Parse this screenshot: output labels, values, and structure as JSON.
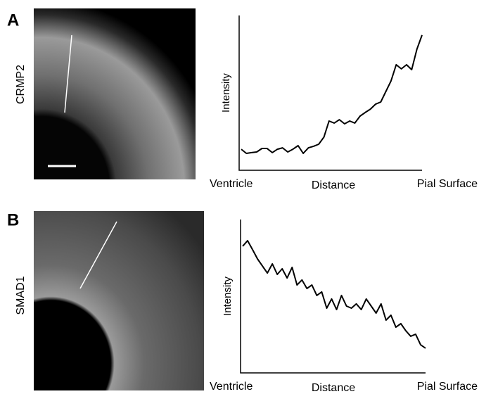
{
  "panel_labels": [
    "A",
    "B"
  ],
  "image_labels": [
    "CRMP2",
    "SMAD1"
  ],
  "chart_data": [
    {
      "type": "line",
      "xlabel": "Distance",
      "xlabel_start": "Ventricle",
      "xlabel_end": "Pial Surface",
      "ylabel": "Intensity",
      "ylim": [
        0,
        100
      ],
      "color": "#000000",
      "values": [
        13.6,
        10.9,
        11.4,
        11.8,
        14.1,
        14.1,
        11.4,
        13.6,
        14.5,
        11.8,
        13.6,
        15.9,
        10.9,
        14.5,
        15.5,
        16.8,
        21.4,
        31.8,
        30.5,
        32.7,
        30,
        31.8,
        30.5,
        35,
        37.3,
        39.5,
        42.7,
        44.1,
        50.9,
        57.7,
        68.2,
        65.5,
        68.2,
        65,
        78.2,
        87.3
      ]
    },
    {
      "type": "line",
      "xlabel": "Distance",
      "xlabel_start": "Ventricle",
      "xlabel_end": "Pial Surface",
      "ylabel": "Intensity",
      "ylim": [
        0,
        100
      ],
      "color": "#000000",
      "values": [
        82.6,
        86.2,
        80.3,
        74.3,
        69.7,
        65.1,
        71.1,
        64.2,
        67.9,
        61.9,
        68.8,
        57.3,
        60.6,
        55,
        57.3,
        50.5,
        52.8,
        42.2,
        48.2,
        41.3,
        50.5,
        43.6,
        42.2,
        45,
        41.3,
        48.2,
        43.6,
        39,
        45,
        34.4,
        37.6,
        29.8,
        32.1,
        27.5,
        23.9,
        25.2,
        18.3,
        16.1
      ]
    }
  ]
}
